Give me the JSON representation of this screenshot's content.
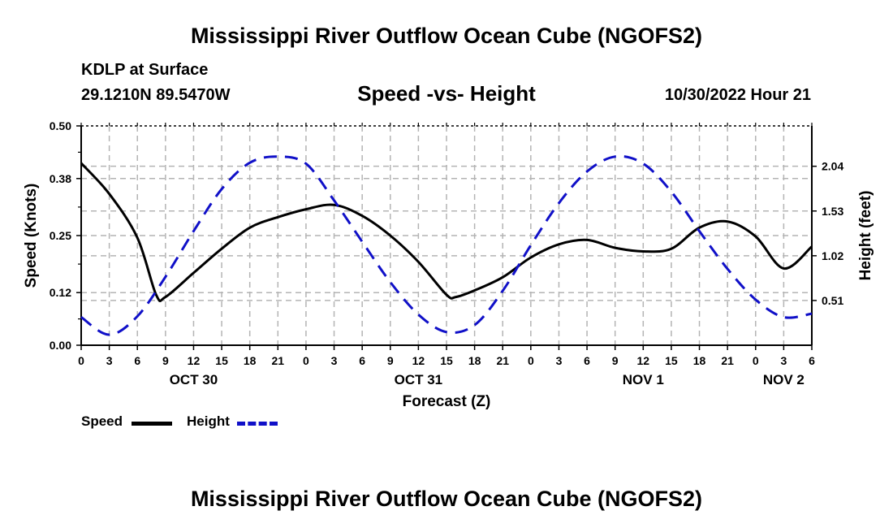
{
  "header": {
    "title": "Mississippi River Outflow Ocean Cube (NGOFS2)",
    "station": "KDLP at Surface",
    "coords": "29.1210N  89.5470W",
    "subtitle": "Speed -vs- Height",
    "datetime": "10/30/2022 Hour 21"
  },
  "footer": {
    "title": "Mississippi River Outflow Ocean Cube (NGOFS2)"
  },
  "legend": {
    "speed_label": "Speed",
    "height_label": "Height"
  },
  "colors": {
    "speed": "#000000",
    "height": "#1010c8",
    "grid": "#b4b4b4"
  },
  "chart_data": {
    "type": "line",
    "title": "Speed -vs- Height",
    "xlabel": "Forecast (Z)",
    "ylabel": "Speed (Knots)",
    "y2label": "Height (feet)",
    "x_range": [
      0,
      78
    ],
    "x_tick_labels": [
      "0",
      "3",
      "6",
      "9",
      "12",
      "15",
      "18",
      "21",
      "0",
      "3",
      "6",
      "9",
      "12",
      "15",
      "18",
      "21",
      "0",
      "3",
      "6",
      "9",
      "12",
      "15",
      "18",
      "21",
      "0",
      "3",
      "6"
    ],
    "date_labels": [
      {
        "label": "OCT 30",
        "hour": 12
      },
      {
        "label": "OCT 31",
        "hour": 36
      },
      {
        "label": "NOV 1",
        "hour": 60
      },
      {
        "label": "NOV 2",
        "hour": 75
      }
    ],
    "ylim": [
      0,
      0.5
    ],
    "yticks": [
      0.0,
      0.12,
      0.25,
      0.38,
      0.5
    ],
    "ytick_labels": [
      "0.00",
      "0.12",
      "0.25",
      "0.38",
      "0.50"
    ],
    "y2lim": [
      0,
      2.5
    ],
    "y2ticks": [
      0.51,
      1.02,
      1.53,
      2.04
    ],
    "y2tick_labels": [
      "0.51",
      "1.02",
      "1.53",
      "2.04"
    ],
    "grid": true,
    "series": [
      {
        "name": "Speed",
        "axis": "left",
        "style": "solid",
        "x": [
          0,
          3,
          6,
          8,
          9,
          12,
          15,
          18,
          21,
          24,
          27,
          30,
          33,
          36,
          39,
          40,
          42,
          45,
          48,
          51,
          54,
          57,
          60,
          63,
          66,
          69,
          72,
          75,
          78
        ],
        "values": [
          0.415,
          0.345,
          0.245,
          0.115,
          0.11,
          0.165,
          0.22,
          0.268,
          0.292,
          0.31,
          0.32,
          0.295,
          0.25,
          0.19,
          0.115,
          0.11,
          0.125,
          0.155,
          0.2,
          0.23,
          0.24,
          0.222,
          0.214,
          0.22,
          0.268,
          0.282,
          0.248,
          0.175,
          0.225
        ]
      },
      {
        "name": "Height",
        "axis": "right",
        "style": "dashed",
        "x": [
          0,
          3,
          6,
          9,
          12,
          15,
          18,
          21,
          24,
          27,
          30,
          33,
          36,
          39,
          42,
          45,
          48,
          51,
          54,
          57,
          60,
          63,
          66,
          69,
          72,
          75,
          78
        ],
        "values": [
          0.32,
          0.12,
          0.33,
          0.78,
          1.3,
          1.78,
          2.08,
          2.15,
          2.07,
          1.65,
          1.18,
          0.72,
          0.35,
          0.15,
          0.23,
          0.62,
          1.14,
          1.62,
          1.98,
          2.15,
          2.07,
          1.75,
          1.3,
          0.87,
          0.52,
          0.32,
          0.36
        ]
      }
    ]
  }
}
